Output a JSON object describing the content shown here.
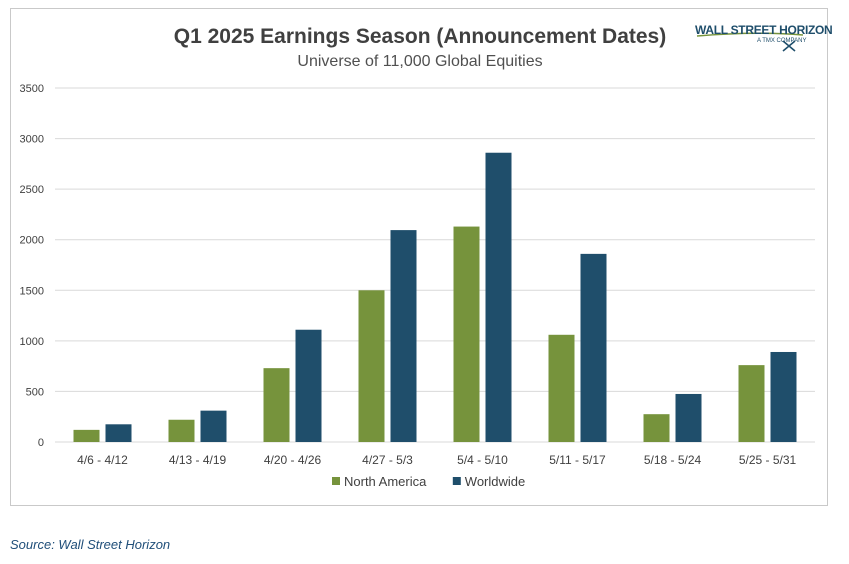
{
  "title": "Q1 2025 Earnings Season (Announcement Dates)",
  "subtitle": "Universe of 11,000 Global Equities",
  "logo": {
    "name": "WALL STREET HORIZON",
    "tagline": "A TMX COMPANY"
  },
  "source": "Source: Wall Street Horizon",
  "colors": {
    "north_america": "#76933c",
    "worldwide": "#1f4e6b",
    "grid": "#d9d9d9",
    "axis_text": "#404040"
  },
  "chart_data": {
    "type": "bar",
    "title": "Q1 2025 Earnings Season (Announcement Dates)",
    "subtitle": "Universe of 11,000 Global Equities",
    "categories": [
      "4/6 - 4/12",
      "4/13 - 4/19",
      "4/20 - 4/26",
      "4/27 - 5/3",
      "5/4 - 5/10",
      "5/11 - 5/17",
      "5/18 - 5/24",
      "5/25 - 5/31"
    ],
    "series": [
      {
        "name": "North America",
        "color": "#76933c",
        "values": [
          120,
          220,
          730,
          1500,
          2130,
          1060,
          275,
          760
        ]
      },
      {
        "name": "Worldwide",
        "color": "#1f4e6b",
        "values": [
          175,
          310,
          1110,
          2095,
          2860,
          1860,
          475,
          890
        ]
      }
    ],
    "yticks": [
      0,
      500,
      1000,
      1500,
      2000,
      2500,
      3000,
      3500
    ],
    "ylim": [
      0,
      3500
    ],
    "grid": true,
    "legend": "bottom"
  }
}
